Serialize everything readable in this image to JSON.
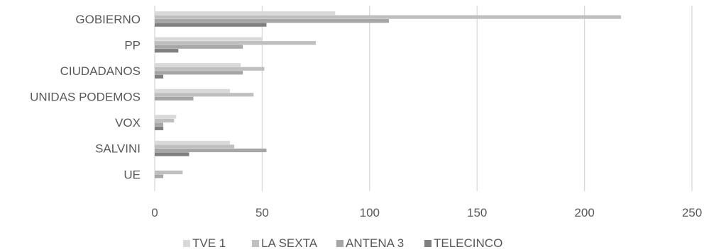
{
  "chart_data": {
    "type": "bar",
    "orientation": "horizontal",
    "categories": [
      "GOBIERNO",
      "PP",
      "CIUDADANOS",
      "UNIDAS PODEMOS",
      "VOX",
      "SALVINI",
      "UE"
    ],
    "series": [
      {
        "name": "TVE 1",
        "color": "#d9d9d9",
        "values": [
          84,
          50,
          40,
          35,
          10,
          35,
          0
        ]
      },
      {
        "name": "LA SEXTA",
        "color": "#bfbfbf",
        "values": [
          217,
          75,
          51,
          46,
          9,
          37,
          13
        ]
      },
      {
        "name": "ANTENA 3",
        "color": "#a6a6a6",
        "values": [
          109,
          41,
          41,
          18,
          4,
          52,
          4
        ]
      },
      {
        "name": "TELECINCO",
        "color": "#7f7f7f",
        "values": [
          52,
          11,
          4,
          0,
          4,
          16,
          0
        ]
      }
    ],
    "xlim": [
      0,
      250
    ],
    "xticks": [
      0,
      50,
      100,
      150,
      200,
      250
    ],
    "grid": "vertical",
    "legend_position": "bottom"
  }
}
